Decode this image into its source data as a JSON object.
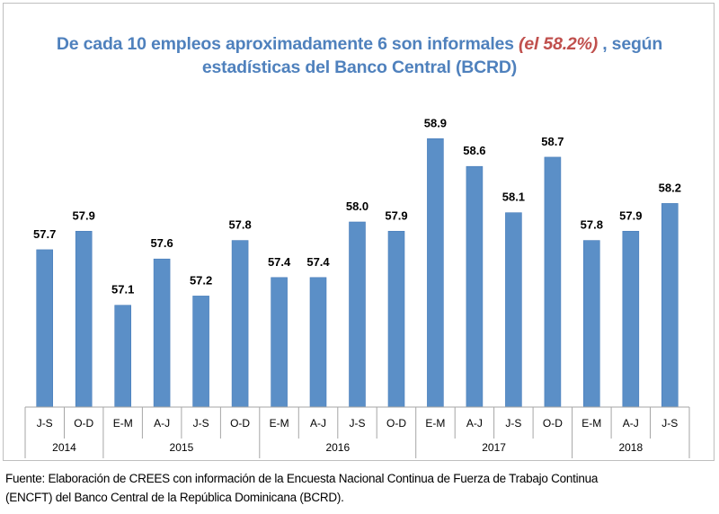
{
  "title": {
    "part1": "De cada 10 empleos aproximadamente 6 son informales ",
    "highlight": "(el 58.2%)",
    "part2": " , según",
    "line2": "estadísticas del Banco Central (BCRD)"
  },
  "source": {
    "line1": "Fuente: Elaboración de CREES con información de la Encuesta Nacional Continua de Fuerza de Trabajo Continua",
    "line2": "(ENCFT) del Banco Central de la República Dominicana (BCRD)."
  },
  "chart_data": {
    "type": "bar",
    "title": "De cada 10 empleos aproximadamente 6 son informales (el 58.2%) , según estadísticas del Banco Central (BCRD)",
    "xlabel": "",
    "ylabel": "",
    "ylim": [
      56.0,
      59.5
    ],
    "grid": false,
    "legend": "none",
    "bar_color": "#5b8fc7",
    "highlight_color": "#c0504d",
    "title_color": "#4f81bd",
    "categories": [
      "J-S",
      "O-D",
      "E-M",
      "A-J",
      "J-S",
      "O-D",
      "E-M",
      "A-J",
      "J-S",
      "O-D",
      "E-M",
      "A-J",
      "J-S",
      "O-D",
      "E-M",
      "A-J",
      "J-S"
    ],
    "groups": [
      {
        "label": "2014",
        "count": 2
      },
      {
        "label": "2015",
        "count": 4
      },
      {
        "label": "2016",
        "count": 4
      },
      {
        "label": "2017",
        "count": 4
      },
      {
        "label": "2018",
        "count": 3
      }
    ],
    "values": [
      57.7,
      57.9,
      57.1,
      57.6,
      57.2,
      57.8,
      57.4,
      57.4,
      58.0,
      57.9,
      58.9,
      58.6,
      58.1,
      58.7,
      57.8,
      57.9,
      58.2
    ],
    "value_labels": [
      "57.7",
      "57.9",
      "57.1",
      "57.6",
      "57.2",
      "57.8",
      "57.4",
      "57.4",
      "58.0",
      "57.9",
      "58.9",
      "58.6",
      "58.1",
      "58.7",
      "57.8",
      "57.9",
      "58.2"
    ]
  }
}
